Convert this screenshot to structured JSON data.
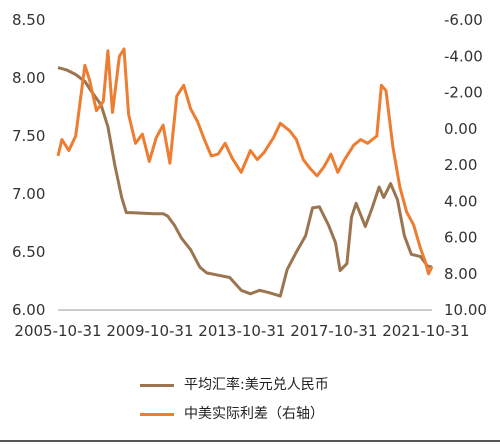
{
  "chart_data": {
    "type": "line",
    "title": "",
    "x_ticks": [
      "2005-10-31",
      "2009-10-31",
      "2013-10-31",
      "2017-10-31",
      "2021-10-31"
    ],
    "left_axis": {
      "ticks": [
        "8.50",
        "8.00",
        "7.50",
        "7.00",
        "6.50",
        "6.00"
      ],
      "ylim": [
        6.0,
        8.5
      ]
    },
    "right_axis": {
      "ticks": [
        "-6.00",
        "-4.00",
        "-2.00",
        "0.00",
        "2.00",
        "4.00",
        "6.00",
        "8.00",
        "10.00"
      ],
      "ylim": [
        -6.0,
        10.0
      ],
      "inverted": true
    },
    "x_range": [
      2005.83,
      2022.1
    ],
    "grid": false,
    "legend_position": "bottom",
    "series": [
      {
        "name": "平均汇率:美元兑人民币",
        "axis": "left",
        "color": "#9b7550",
        "points": [
          [
            2005.83,
            8.09
          ],
          [
            2006.2,
            8.07
          ],
          [
            2006.6,
            8.03
          ],
          [
            2007.0,
            7.97
          ],
          [
            2007.3,
            7.88
          ],
          [
            2007.7,
            7.77
          ],
          [
            2008.0,
            7.58
          ],
          [
            2008.3,
            7.25
          ],
          [
            2008.6,
            6.97
          ],
          [
            2008.8,
            6.84
          ],
          [
            2009.0,
            6.84
          ],
          [
            2010.0,
            6.83
          ],
          [
            2010.4,
            6.83
          ],
          [
            2010.6,
            6.81
          ],
          [
            2010.9,
            6.73
          ],
          [
            2011.2,
            6.62
          ],
          [
            2011.6,
            6.52
          ],
          [
            2012.0,
            6.37
          ],
          [
            2012.3,
            6.32
          ],
          [
            2012.8,
            6.3
          ],
          [
            2013.3,
            6.28
          ],
          [
            2013.8,
            6.17
          ],
          [
            2014.2,
            6.14
          ],
          [
            2014.6,
            6.17
          ],
          [
            2015.0,
            6.15
          ],
          [
            2015.5,
            6.12
          ],
          [
            2015.8,
            6.35
          ],
          [
            2016.2,
            6.5
          ],
          [
            2016.6,
            6.64
          ],
          [
            2016.9,
            6.88
          ],
          [
            2017.2,
            6.89
          ],
          [
            2017.6,
            6.73
          ],
          [
            2017.9,
            6.58
          ],
          [
            2018.1,
            6.34
          ],
          [
            2018.4,
            6.4
          ],
          [
            2018.6,
            6.8
          ],
          [
            2018.8,
            6.92
          ],
          [
            2019.2,
            6.72
          ],
          [
            2019.5,
            6.88
          ],
          [
            2019.8,
            7.06
          ],
          [
            2020.0,
            6.97
          ],
          [
            2020.3,
            7.09
          ],
          [
            2020.6,
            6.95
          ],
          [
            2020.9,
            6.64
          ],
          [
            2021.2,
            6.48
          ],
          [
            2021.6,
            6.46
          ],
          [
            2021.9,
            6.38
          ],
          [
            2022.1,
            6.37
          ]
        ]
      },
      {
        "name": "中美实际利差（右轴）",
        "axis": "right",
        "color": "#ed7d31",
        "points": [
          [
            2005.83,
            1.5
          ],
          [
            2006.0,
            0.6
          ],
          [
            2006.3,
            1.2
          ],
          [
            2006.6,
            0.4
          ],
          [
            2007.0,
            -3.5
          ],
          [
            2007.2,
            -2.7
          ],
          [
            2007.5,
            -1.0
          ],
          [
            2007.8,
            -1.5
          ],
          [
            2008.0,
            -4.3
          ],
          [
            2008.2,
            -0.9
          ],
          [
            2008.5,
            -4.0
          ],
          [
            2008.7,
            -4.4
          ],
          [
            2008.9,
            -0.8
          ],
          [
            2009.2,
            0.8
          ],
          [
            2009.5,
            0.3
          ],
          [
            2009.8,
            1.8
          ],
          [
            2010.1,
            0.5
          ],
          [
            2010.4,
            -0.2
          ],
          [
            2010.7,
            1.9
          ],
          [
            2011.0,
            -1.8
          ],
          [
            2011.3,
            -2.4
          ],
          [
            2011.6,
            -1.1
          ],
          [
            2011.9,
            -0.4
          ],
          [
            2012.2,
            0.6
          ],
          [
            2012.5,
            1.5
          ],
          [
            2012.8,
            1.4
          ],
          [
            2013.1,
            0.8
          ],
          [
            2013.4,
            1.6
          ],
          [
            2013.8,
            2.4
          ],
          [
            2014.2,
            1.2
          ],
          [
            2014.5,
            1.7
          ],
          [
            2014.8,
            1.3
          ],
          [
            2015.2,
            0.5
          ],
          [
            2015.5,
            -0.3
          ],
          [
            2015.9,
            0.1
          ],
          [
            2016.2,
            0.6
          ],
          [
            2016.5,
            1.7
          ],
          [
            2016.8,
            2.2
          ],
          [
            2017.1,
            2.6
          ],
          [
            2017.4,
            2.1
          ],
          [
            2017.7,
            1.4
          ],
          [
            2018.0,
            2.4
          ],
          [
            2018.3,
            1.7
          ],
          [
            2018.7,
            0.9
          ],
          [
            2019.0,
            0.6
          ],
          [
            2019.3,
            0.8
          ],
          [
            2019.7,
            0.4
          ],
          [
            2019.9,
            -2.4
          ],
          [
            2020.1,
            -2.1
          ],
          [
            2020.4,
            1.0
          ],
          [
            2020.7,
            3.2
          ],
          [
            2021.0,
            4.6
          ],
          [
            2021.3,
            5.3
          ],
          [
            2021.6,
            6.6
          ],
          [
            2021.8,
            7.3
          ],
          [
            2021.95,
            8.0
          ],
          [
            2022.1,
            7.6
          ]
        ]
      }
    ]
  }
}
